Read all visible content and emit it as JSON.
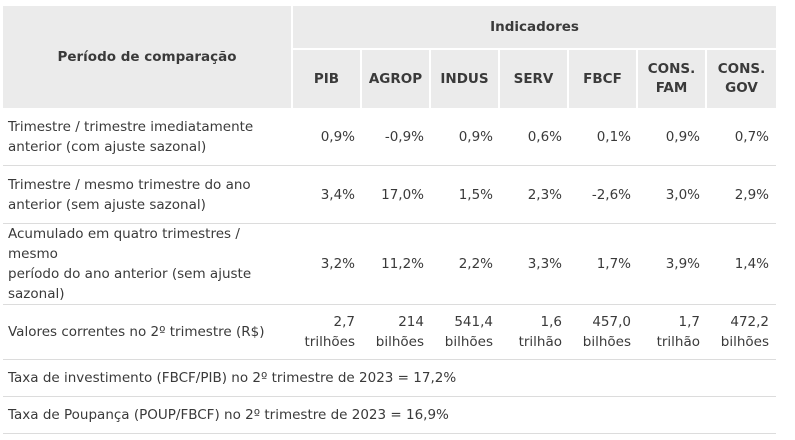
{
  "header": {
    "period_label": "Período de comparação",
    "indicators_label": "Indicadores",
    "columns": [
      {
        "line1": "PIB",
        "line2": ""
      },
      {
        "line1": "AGROP",
        "line2": ""
      },
      {
        "line1": "INDUS",
        "line2": ""
      },
      {
        "line1": "SERV",
        "line2": ""
      },
      {
        "line1": "FBCF",
        "line2": ""
      },
      {
        "line1": "CONS.",
        "line2": "FAM"
      },
      {
        "line1": "CONS.",
        "line2": "GOV"
      }
    ]
  },
  "rows": [
    {
      "label_lines": [
        "Trimestre / trimestre imediatamente",
        "anterior (com ajuste sazonal)"
      ],
      "values": [
        {
          "a": "0,9%",
          "b": ""
        },
        {
          "a": "-0,9%",
          "b": ""
        },
        {
          "a": "0,9%",
          "b": ""
        },
        {
          "a": "0,6%",
          "b": ""
        },
        {
          "a": "0,1%",
          "b": ""
        },
        {
          "a": "0,9%",
          "b": ""
        },
        {
          "a": "0,7%",
          "b": ""
        }
      ]
    },
    {
      "label_lines": [
        "Trimestre / mesmo trimestre do ano",
        "anterior (sem ajuste sazonal)"
      ],
      "values": [
        {
          "a": "3,4%",
          "b": ""
        },
        {
          "a": "17,0%",
          "b": ""
        },
        {
          "a": "1,5%",
          "b": ""
        },
        {
          "a": "2,3%",
          "b": ""
        },
        {
          "a": "-2,6%",
          "b": ""
        },
        {
          "a": "3,0%",
          "b": ""
        },
        {
          "a": "2,9%",
          "b": ""
        }
      ]
    },
    {
      "label_lines": [
        "Acumulado em quatro trimestres / mesmo",
        "período do ano anterior (sem ajuste",
        "sazonal)"
      ],
      "values": [
        {
          "a": "3,2%",
          "b": ""
        },
        {
          "a": "11,2%",
          "b": ""
        },
        {
          "a": "2,2%",
          "b": ""
        },
        {
          "a": "3,3%",
          "b": ""
        },
        {
          "a": "1,7%",
          "b": ""
        },
        {
          "a": "3,9%",
          "b": ""
        },
        {
          "a": "1,4%",
          "b": ""
        }
      ]
    },
    {
      "label_lines": [
        "Valores correntes no 2º trimestre (R$)"
      ],
      "values": [
        {
          "a": "2,7",
          "b": "trilhões"
        },
        {
          "a": "214",
          "b": "bilhões"
        },
        {
          "a": "541,4",
          "b": "bilhões"
        },
        {
          "a": "1,6",
          "b": "trilhão"
        },
        {
          "a": "457,0",
          "b": "bilhões"
        },
        {
          "a": "1,7",
          "b": "trilhão"
        },
        {
          "a": "472,2",
          "b": "bilhões"
        }
      ]
    }
  ],
  "footer_rows": [
    "Taxa de investimento (FBCF/PIB) no 2º trimestre de 2023 = 17,2%",
    "Taxa de Poupança (POUP/FBCF) no 2º trimestre de 2023 = 16,9%"
  ]
}
